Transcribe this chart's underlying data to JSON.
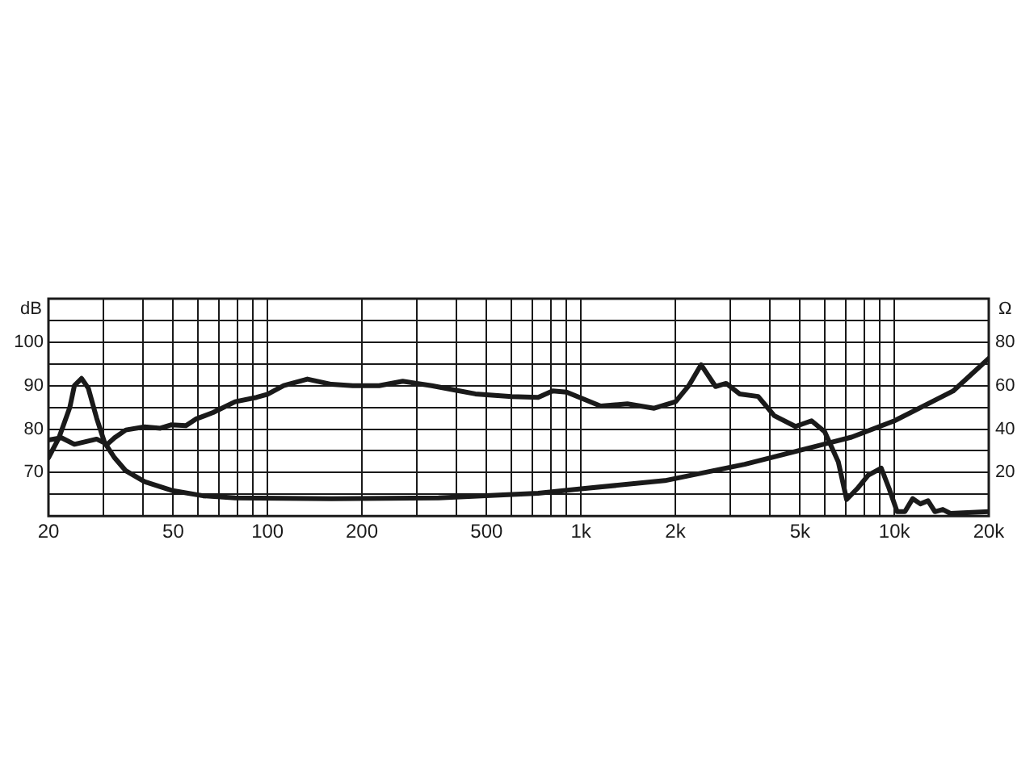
{
  "chart_data": {
    "type": "line",
    "ylabel": "dB",
    "y2label": "Ω",
    "log": "x",
    "grid": true,
    "legend": false,
    "marker": "none",
    "line_style": "solid",
    "xlim": [
      20,
      20000
    ],
    "xticks": [
      {
        "value": 20,
        "label": "20"
      },
      {
        "value": 30,
        "label": null
      },
      {
        "value": 40,
        "label": null
      },
      {
        "value": 50,
        "label": "50"
      },
      {
        "value": 60,
        "label": null
      },
      {
        "value": 70,
        "label": null
      },
      {
        "value": 80,
        "label": null
      },
      {
        "value": 90,
        "label": null
      },
      {
        "value": 100,
        "label": "100"
      },
      {
        "value": 200,
        "label": "200"
      },
      {
        "value": 300,
        "label": null
      },
      {
        "value": 400,
        "label": null
      },
      {
        "value": 500,
        "label": "500"
      },
      {
        "value": 600,
        "label": null
      },
      {
        "value": 700,
        "label": null
      },
      {
        "value": 800,
        "label": null
      },
      {
        "value": 900,
        "label": null
      },
      {
        "value": 1000,
        "label": "1k"
      },
      {
        "value": 2000,
        "label": "2k"
      },
      {
        "value": 3000,
        "label": null
      },
      {
        "value": 4000,
        "label": null
      },
      {
        "value": 5000,
        "label": "5k"
      },
      {
        "value": 6000,
        "label": null
      },
      {
        "value": 7000,
        "label": null
      },
      {
        "value": 8000,
        "label": null
      },
      {
        "value": 9000,
        "label": null
      },
      {
        "value": 10000,
        "label": "10k"
      },
      {
        "value": 20000,
        "label": "20k"
      }
    ],
    "ylim": [
      60,
      110
    ],
    "yticks": [
      {
        "value": 60,
        "label": null
      },
      {
        "value": 65,
        "label": null
      },
      70,
      {
        "value": 75,
        "label": null
      },
      80,
      {
        "value": 85,
        "label": null
      },
      90,
      {
        "value": 95,
        "label": null
      },
      100,
      {
        "value": 105,
        "label": null
      },
      {
        "value": 110,
        "label": null
      }
    ],
    "y2lim": [
      0,
      100
    ],
    "y2ticks": [
      20,
      40,
      60,
      80
    ],
    "series": [
      {
        "color": "#1a1a1a",
        "axis": "y",
        "x": [
          20,
          22,
          24.2,
          28.5,
          30.8,
          32.5,
          35.3,
          40.5,
          45.5,
          49.4,
          54.9,
          59,
          67,
          78.8,
          92.3,
          100,
          112.6,
          134,
          160,
          187,
          227,
          270,
          334,
          394,
          460,
          601,
          730,
          812,
          900,
          1156,
          1406,
          1712,
          2003,
          2208,
          2417,
          2687,
          2905,
          3206,
          3675,
          4135,
          4833,
          5440,
          5990,
          6620,
          7040,
          7610,
          8250,
          9080,
          9620,
          10200,
          10800,
          11440,
          12100,
          12800,
          13470,
          14270,
          15080,
          20000
        ],
        "values": [
          77.5,
          78,
          76.5,
          77.7,
          76.5,
          78,
          79.8,
          80.5,
          80.2,
          81,
          80.8,
          82.3,
          83.8,
          86.3,
          87.3,
          88,
          90,
          91.5,
          90.3,
          90,
          90,
          91,
          90,
          89,
          88.1,
          87.5,
          87.3,
          88.8,
          88.5,
          85.3,
          85.8,
          84.8,
          86.3,
          90,
          94.8,
          89.8,
          90.5,
          88.1,
          87.5,
          83.1,
          80.6,
          81.9,
          79.4,
          72.5,
          63.8,
          66.3,
          69.4,
          71,
          66.3,
          61,
          61,
          64,
          62.8,
          63.5,
          61,
          61.5,
          60.6,
          61
        ]
      },
      {
        "color": "#1a1a1a",
        "axis": "y2",
        "x": [
          20,
          21.6,
          23.4,
          24.2,
          25.5,
          26.8,
          28.5,
          30.2,
          32.5,
          35.3,
          40.5,
          49.4,
          62.3,
          78.8,
          160,
          351,
          730,
          1000,
          1852,
          3330,
          4930,
          7300,
          10000,
          15380,
          20000
        ],
        "values": [
          26.8,
          36,
          50,
          60,
          63.3,
          58.8,
          45,
          33.8,
          26.8,
          20.8,
          15.8,
          11.8,
          9.3,
          8.3,
          8,
          8.3,
          10.5,
          12.5,
          16.3,
          23.8,
          30,
          36.3,
          43.8,
          57.5,
          72.5
        ]
      }
    ]
  }
}
